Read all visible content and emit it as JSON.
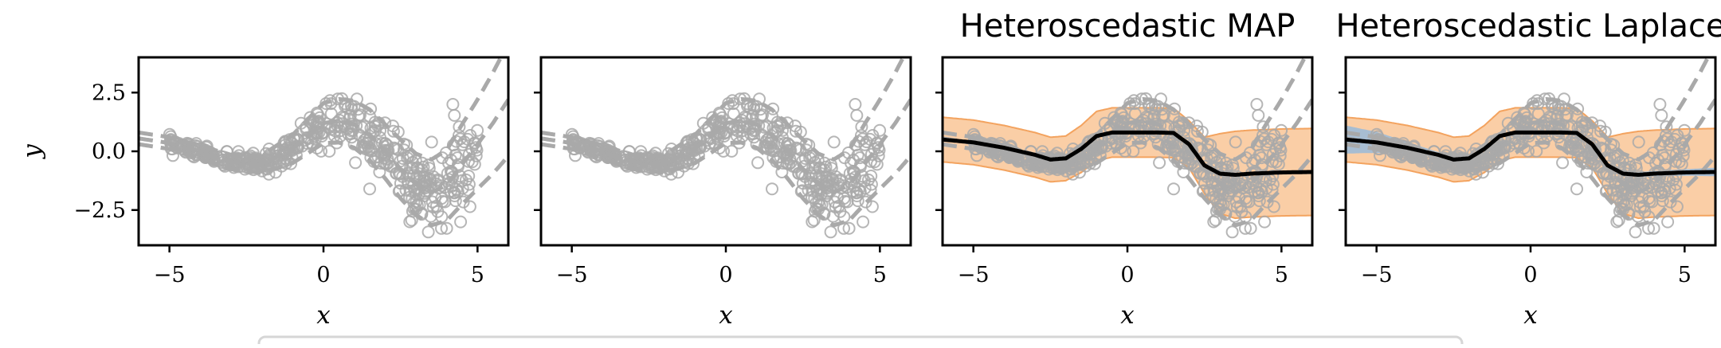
{
  "chart_data": [
    {
      "type": "scatter",
      "title": "",
      "xlabel": "x",
      "ylabel": "y",
      "xlim": [
        -6,
        6
      ],
      "ylim": [
        -4,
        4
      ],
      "xticks": [
        -5,
        0,
        5
      ],
      "xtick_labels": [
        "−5",
        "0",
        "5"
      ],
      "yticks": [
        2.5,
        0.0,
        -2.5
      ],
      "ytick_labels": [
        "2.5",
        "0.0",
        "−2.5"
      ],
      "grid": false,
      "show_map": false,
      "show_laplace": false
    },
    {
      "type": "scatter",
      "title": "",
      "xlabel": "x",
      "ylabel": "",
      "xlim": [
        -6,
        6
      ],
      "ylim": [
        -4,
        4
      ],
      "xticks": [
        -5,
        0,
        5
      ],
      "xtick_labels": [
        "−5",
        "0",
        "5"
      ],
      "yticks": [
        2.5,
        0.0,
        -2.5
      ],
      "ytick_labels": [],
      "grid": false,
      "show_map": false,
      "show_laplace": false
    },
    {
      "type": "line",
      "title": "Heteroscedastic MAP",
      "xlabel": "x",
      "ylabel": "",
      "xlim": [
        -6,
        6
      ],
      "ylim": [
        -4,
        4
      ],
      "xticks": [
        -5,
        0,
        5
      ],
      "xtick_labels": [
        "−5",
        "0",
        "5"
      ],
      "yticks": [
        2.5,
        0.0,
        -2.5
      ],
      "ytick_labels": [],
      "grid": false,
      "show_map": true,
      "show_laplace": false
    },
    {
      "type": "line",
      "title": "Heteroscedastic Laplace",
      "xlabel": "x",
      "ylabel": "",
      "xlim": [
        -6,
        6
      ],
      "ylim": [
        -4,
        4
      ],
      "xticks": [
        -5,
        0,
        5
      ],
      "xtick_labels": [
        "−5",
        "0",
        "5"
      ],
      "yticks": [
        2.5,
        0.0,
        -2.5
      ],
      "ytick_labels": [],
      "grid": false,
      "show_map": true,
      "show_laplace": true
    }
  ],
  "model": {
    "true_mean_x": [
      -6,
      -5,
      -4,
      -3,
      -2,
      -1,
      0,
      0.5,
      1,
      1.5,
      2,
      2.5,
      3,
      3.5,
      4,
      4.5,
      5,
      5.5,
      6
    ],
    "true_mean_y": [
      0.55,
      0.35,
      -0.05,
      -0.45,
      -0.55,
      0.1,
      1.2,
      1.3,
      1.15,
      0.7,
      0.0,
      -0.75,
      -1.4,
      -1.75,
      -1.45,
      -0.55,
      0.3,
      1.2,
      2.2
    ],
    "true_band_x": [
      -6,
      -5,
      -4,
      -3,
      -2,
      -1,
      0,
      1,
      2,
      2.5,
      3,
      3.5,
      4,
      4.5,
      5,
      5.5,
      6
    ],
    "true_band_halfwidth": [
      0.25,
      0.25,
      0.28,
      0.3,
      0.38,
      0.6,
      0.85,
      1.0,
      1.15,
      1.25,
      1.3,
      1.4,
      1.5,
      1.7,
      1.9,
      2.15,
      2.4
    ],
    "map_x": [
      -6,
      -5,
      -4,
      -3,
      -2.5,
      -2,
      -1.5,
      -1,
      -0.5,
      0,
      0.5,
      1,
      1.5,
      2,
      2.5,
      3,
      3.5,
      4,
      5,
      6
    ],
    "map_mean": [
      0.5,
      0.38,
      0.15,
      -0.15,
      -0.35,
      -0.3,
      0.1,
      0.65,
      0.8,
      0.8,
      0.8,
      0.8,
      0.78,
      0.3,
      -0.6,
      -0.95,
      -1.0,
      -0.95,
      -0.9,
      -0.88
    ],
    "map_std": [
      0.95,
      0.95,
      0.95,
      0.95,
      0.95,
      0.95,
      1.0,
      1.05,
      1.05,
      1.05,
      1.05,
      1.05,
      1.05,
      1.0,
      1.2,
      1.7,
      1.85,
      1.85,
      1.85,
      1.85
    ],
    "epistemic_x": [
      -6,
      -5.5,
      -5,
      -4.5,
      -4,
      -3.5,
      -3,
      -2.5,
      -2,
      -1,
      0,
      1,
      2,
      3,
      4,
      5,
      6
    ],
    "epistemic_halfwidth": [
      0.6,
      0.52,
      0.45,
      0.35,
      0.25,
      0.18,
      0.12,
      0.1,
      0.09,
      0.08,
      0.08,
      0.08,
      0.1,
      0.1,
      0.12,
      0.14,
      0.18
    ],
    "colors": {
      "data": "#a9a9a9",
      "true_function": "#a9a9a9",
      "map_mean": "#000000",
      "aleatoric_fill": "#f9c597",
      "aleatoric_edge": "#f3a35f",
      "epistemic_fill": "#9dbbd7",
      "legend_border": "#d6d6d6"
    }
  }
}
